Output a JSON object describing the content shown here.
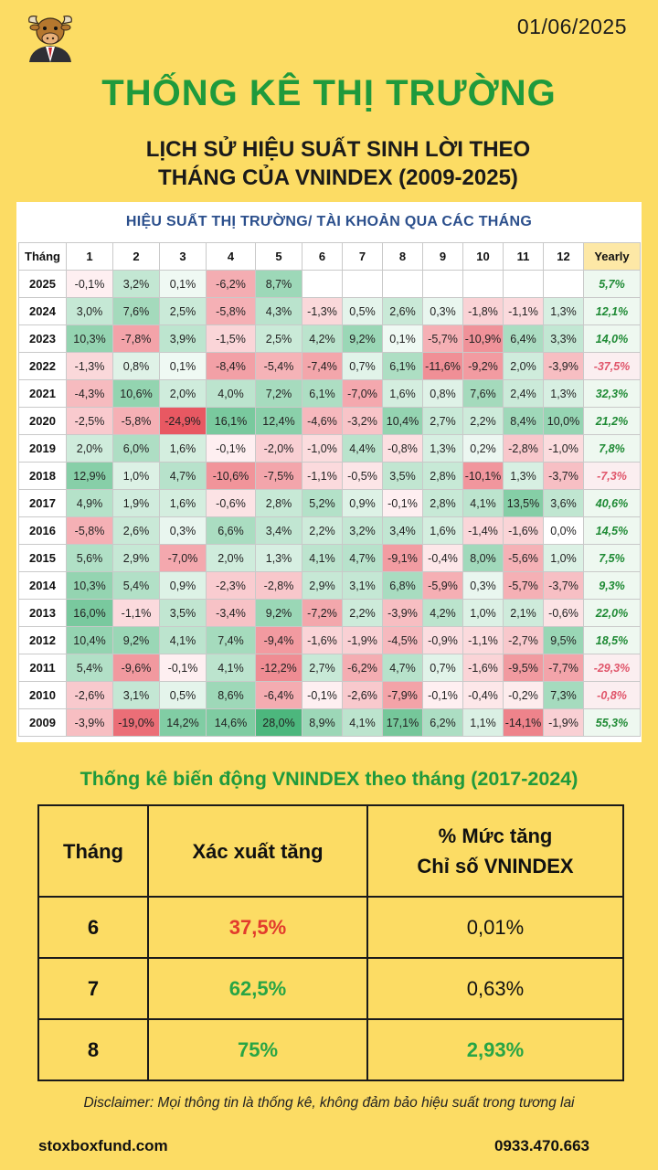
{
  "header": {
    "logo_icon": "bull-mascot-icon",
    "date": "01/06/2025",
    "title": "THỐNG KÊ THỊ TRƯỜNG",
    "subtitle_line1": "LỊCH SỬ HIỆU SUẤT SINH LỜI THEO",
    "subtitle_line2": "THÁNG CỦA VNINDEX (2009-2025)"
  },
  "performance_table": {
    "heading": "HIỆU SUẤT THỊ TRƯỜNG/ TÀI KHOẢN QUA CÁC THÁNG",
    "columns": [
      "Tháng",
      "1",
      "2",
      "3",
      "4",
      "5",
      "6",
      "7",
      "8",
      "9",
      "10",
      "11",
      "12",
      "Yearly"
    ],
    "rows": [
      {
        "year": "2025",
        "values": [
          "-0,1%",
          "3,2%",
          "0,1%",
          "-6,2%",
          "8,7%",
          "",
          "",
          "",
          "",
          "",
          "",
          ""
        ],
        "yearly": "5,7%"
      },
      {
        "year": "2024",
        "values": [
          "3,0%",
          "7,6%",
          "2,5%",
          "-5,8%",
          "4,3%",
          "-1,3%",
          "0,5%",
          "2,6%",
          "0,3%",
          "-1,8%",
          "-1,1%",
          "1,3%"
        ],
        "yearly": "12,1%"
      },
      {
        "year": "2023",
        "values": [
          "10,3%",
          "-7,8%",
          "3,9%",
          "-1,5%",
          "2,5%",
          "4,2%",
          "9,2%",
          "0,1%",
          "-5,7%",
          "-10,9%",
          "6,4%",
          "3,3%"
        ],
        "yearly": "14,0%"
      },
      {
        "year": "2022",
        "values": [
          "-1,3%",
          "0,8%",
          "0,1%",
          "-8,4%",
          "-5,4%",
          "-7,4%",
          "0,7%",
          "6,1%",
          "-11,6%",
          "-9,2%",
          "2,0%",
          "-3,9%"
        ],
        "yearly": "-37,5%"
      },
      {
        "year": "2021",
        "values": [
          "-4,3%",
          "10,6%",
          "2,0%",
          "4,0%",
          "7,2%",
          "6,1%",
          "-7,0%",
          "1,6%",
          "0,8%",
          "7,6%",
          "2,4%",
          "1,3%"
        ],
        "yearly": "32,3%"
      },
      {
        "year": "2020",
        "values": [
          "-2,5%",
          "-5,8%",
          "-24,9%",
          "16,1%",
          "12,4%",
          "-4,6%",
          "-3,2%",
          "10,4%",
          "2,7%",
          "2,2%",
          "8,4%",
          "10,0%"
        ],
        "yearly": "21,2%"
      },
      {
        "year": "2019",
        "values": [
          "2,0%",
          "6,0%",
          "1,6%",
          "-0,1%",
          "-2,0%",
          "-1,0%",
          "4,4%",
          "-0,8%",
          "1,3%",
          "0,2%",
          "-2,8%",
          "-1,0%"
        ],
        "yearly": "7,8%"
      },
      {
        "year": "2018",
        "values": [
          "12,9%",
          "1,0%",
          "4,7%",
          "-10,6%",
          "-7,5%",
          "-1,1%",
          "-0,5%",
          "3,5%",
          "2,8%",
          "-10,1%",
          "1,3%",
          "-3,7%"
        ],
        "yearly": "-7,3%"
      },
      {
        "year": "2017",
        "values": [
          "4,9%",
          "1,9%",
          "1,6%",
          "-0,6%",
          "2,8%",
          "5,2%",
          "0,9%",
          "-0,1%",
          "2,8%",
          "4,1%",
          "13,5%",
          "3,6%"
        ],
        "yearly": "40,6%"
      },
      {
        "year": "2016",
        "values": [
          "-5,8%",
          "2,6%",
          "0,3%",
          "6,6%",
          "3,4%",
          "2,2%",
          "3,2%",
          "3,4%",
          "1,6%",
          "-1,4%",
          "-1,6%",
          "0,0%"
        ],
        "yearly": "14,5%"
      },
      {
        "year": "2015",
        "values": [
          "5,6%",
          "2,9%",
          "-7,0%",
          "2,0%",
          "1,3%",
          "4,1%",
          "4,7%",
          "-9,1%",
          "-0,4%",
          "8,0%",
          "-5,6%",
          "1,0%"
        ],
        "yearly": "7,5%"
      },
      {
        "year": "2014",
        "values": [
          "10,3%",
          "5,4%",
          "0,9%",
          "-2,3%",
          "-2,8%",
          "2,9%",
          "3,1%",
          "6,8%",
          "-5,9%",
          "0,3%",
          "-5,7%",
          "-3,7%"
        ],
        "yearly": "9,3%"
      },
      {
        "year": "2013",
        "values": [
          "16,0%",
          "-1,1%",
          "3,5%",
          "-3,4%",
          "9,2%",
          "-7,2%",
          "2,2%",
          "-3,9%",
          "4,2%",
          "1,0%",
          "2,1%",
          "-0,6%"
        ],
        "yearly": "22,0%"
      },
      {
        "year": "2012",
        "values": [
          "10,4%",
          "9,2%",
          "4,1%",
          "7,4%",
          "-9,4%",
          "-1,6%",
          "-1,9%",
          "-4,5%",
          "-0,9%",
          "-1,1%",
          "-2,7%",
          "9,5%"
        ],
        "yearly": "18,5%"
      },
      {
        "year": "2011",
        "values": [
          "5,4%",
          "-9,6%",
          "-0,1%",
          "4,1%",
          "-12,2%",
          "2,7%",
          "-6,2%",
          "4,7%",
          "0,7%",
          "-1,6%",
          "-9,5%",
          "-7,7%"
        ],
        "yearly": "-29,3%"
      },
      {
        "year": "2010",
        "values": [
          "-2,6%",
          "3,1%",
          "0,5%",
          "8,6%",
          "-6,4%",
          "-0,1%",
          "-2,6%",
          "-7,9%",
          "-0,1%",
          "-0,4%",
          "-0,2%",
          "7,3%"
        ],
        "yearly": "-0,8%"
      },
      {
        "year": "2009",
        "values": [
          "-3,9%",
          "-19,0%",
          "14,2%",
          "14,6%",
          "28,0%",
          "8,9%",
          "4,1%",
          "17,1%",
          "6,2%",
          "1,1%",
          "-14,1%",
          "-1,9%"
        ],
        "yearly": "55,3%"
      }
    ]
  },
  "stats": {
    "title": "Thống kê biến động VNINDEX theo tháng (2017-2024)",
    "col1": "Tháng",
    "col2": "Xác xuất tăng",
    "col3_line1": "% Mức tăng",
    "col3_line2": "Chỉ số VNINDEX",
    "rows": [
      {
        "month": "6",
        "prob": "37,5%",
        "gain": "0,01%"
      },
      {
        "month": "7",
        "prob": "62,5%",
        "gain": "0,63%"
      },
      {
        "month": "8",
        "prob": "75%",
        "gain": "2,93%"
      }
    ],
    "colors": {
      "negative": "#e23b2c",
      "positive": "#27a545"
    }
  },
  "footer": {
    "disclaimer": "Disclaimer: Mọi thông tin là thống kê, không đảm bảo hiệu suất trong tương lai",
    "website": "stoxboxfund.com",
    "phone": "0933.470.663"
  },
  "colors": {
    "background": "#fcdc64",
    "title_green": "#1f9a3c",
    "heading_blue": "#2b4f8c",
    "yearly_positive": "#1e8a34",
    "yearly_negative": "#e0566b"
  }
}
